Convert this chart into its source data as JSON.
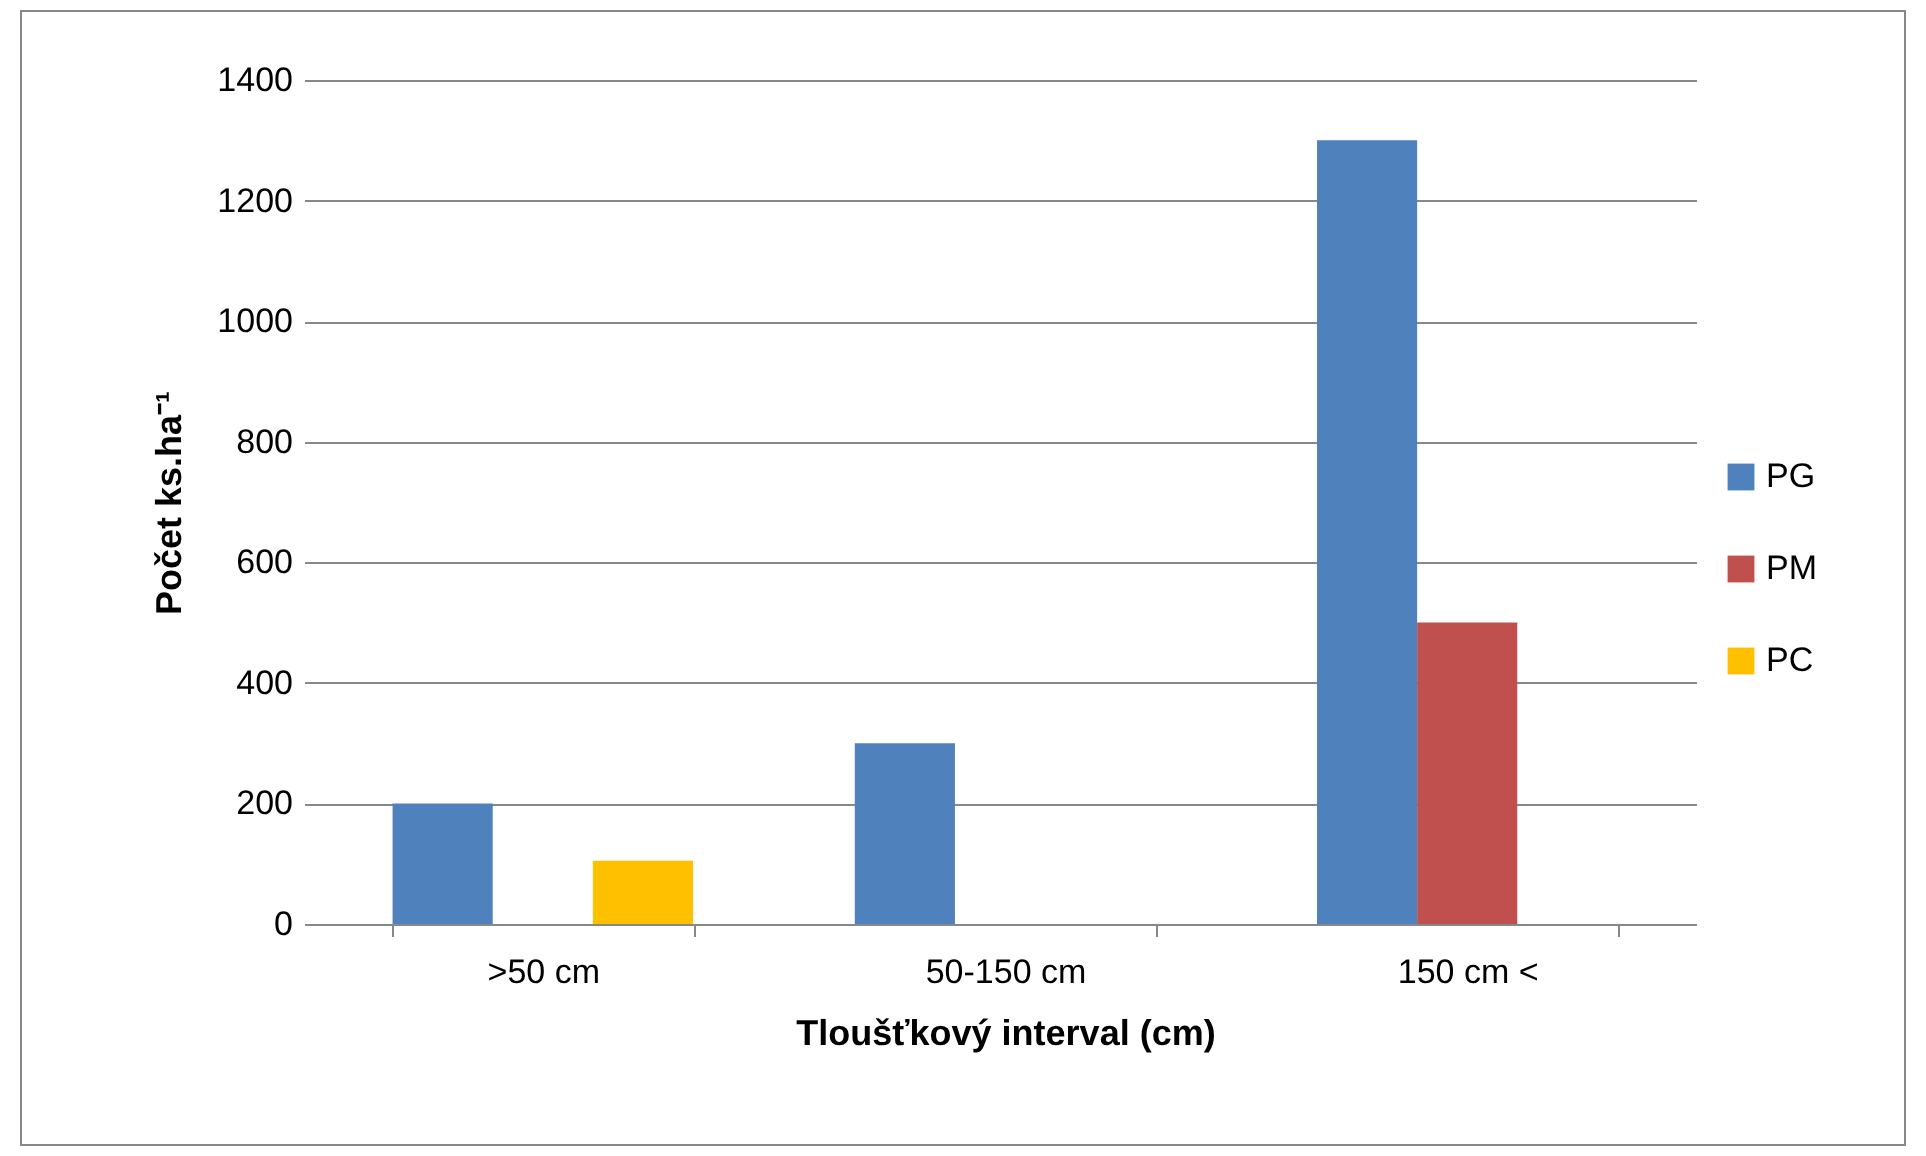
{
  "chart_data": {
    "type": "bar",
    "xlabel": "Tloušťkový interval (cm)",
    "ylabel": "Počet ks.ha⁻¹",
    "categories": [
      ">50 cm",
      "50-150 cm",
      "150 cm <"
    ],
    "series": [
      {
        "name": "PG",
        "color": "#4f81bd",
        "values": [
          200,
          300,
          1300
        ]
      },
      {
        "name": "PM",
        "color": "#c0504d",
        "values": [
          null,
          null,
          500
        ]
      },
      {
        "name": "PC",
        "color": "#ffc000",
        "values": [
          105,
          null,
          null
        ]
      }
    ],
    "ylim": [
      0,
      1400
    ],
    "yticks": [
      0,
      200,
      400,
      600,
      800,
      1000,
      1200,
      1400
    ],
    "grid": "y",
    "legend": "right"
  }
}
